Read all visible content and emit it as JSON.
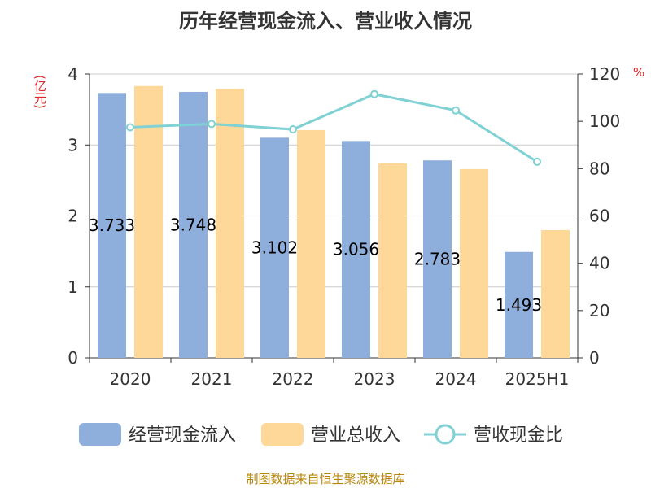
{
  "title": "历年经营现金流入、营业收入情况",
  "unit_left": "(亿元)",
  "unit_right": "%",
  "source": "制图数据来自恒生聚源数据库",
  "colors": {
    "cash_inflow": "#8eaedb",
    "revenue": "#fdd899",
    "ratio": "#7fd1d3",
    "axis": "#333333",
    "grid": "#cccccc",
    "unit": "#e0262b",
    "source": "#b8860b"
  },
  "chart_data": {
    "type": "bar",
    "categories": [
      "2020",
      "2021",
      "2022",
      "2023",
      "2024",
      "2025H1"
    ],
    "series": [
      {
        "name": "经营现金流入",
        "type": "bar",
        "axis": "left",
        "values": [
          3.733,
          3.748,
          3.102,
          3.056,
          2.783,
          1.493
        ],
        "labels": [
          "3.733",
          "3.748",
          "3.102",
          "3.056",
          "2.783",
          "1.493"
        ]
      },
      {
        "name": "营业总收入",
        "type": "bar",
        "axis": "left",
        "values": [
          3.83,
          3.79,
          3.21,
          2.74,
          2.66,
          1.8
        ]
      },
      {
        "name": "营收现金比",
        "type": "line",
        "axis": "right",
        "values": [
          97.5,
          98.9,
          96.6,
          111.5,
          104.6,
          82.9
        ]
      }
    ],
    "y_left": {
      "min": 0,
      "max": 4,
      "ticks": [
        0,
        1,
        2,
        3,
        4
      ]
    },
    "y_right": {
      "min": 0,
      "max": 120,
      "ticks": [
        0,
        20,
        40,
        60,
        80,
        100,
        120
      ]
    },
    "grid": true,
    "legend_position": "bottom"
  }
}
